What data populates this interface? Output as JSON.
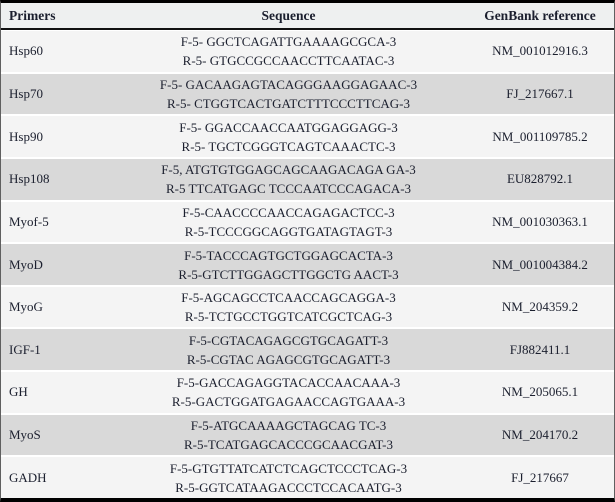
{
  "colors": {
    "border": "#000000",
    "side_edge": "#5f5f5f",
    "header_background": "#eef0f0",
    "row_light": "#f4f4f4",
    "row_dark": "#d9d9d9",
    "row_gap": "#ffffff",
    "text": "#1b1f2e"
  },
  "table": {
    "columns": [
      "Primers",
      "Sequence",
      "GenBank reference"
    ],
    "rows": [
      {
        "primer": "Hsp60",
        "forward": "F-5- GGCTCAGATTGAAAAGCGCA-3",
        "reverse": "R-5- GTGCCGCCAACCTTCAATAC-3",
        "genbank": "NM_001012916.3"
      },
      {
        "primer": "Hsp70",
        "forward": "F-5- GACAAGAGTACAGGGAAGGAGAAC-3",
        "reverse": "R-5- CTGGTCACTGATCTTTCCCTTCAG-3",
        "genbank": "FJ_217667.1"
      },
      {
        "primer": "Hsp90",
        "forward": "F-5- GGACCAACCAATGGAGGAGG-3",
        "reverse": "R-5- TGCTCGGGTCAGTCAAACTC-3",
        "genbank": "NM_001109785.2"
      },
      {
        "primer": "Hsp108",
        "forward": "F-5, ATGTGTGGAGCAGCAAGACAGA GA-3",
        "reverse": "R-5 TTCATGAGC TCCCAATCCCAGACA-3",
        "genbank": "EU828792.1"
      },
      {
        "primer": "Myof-5",
        "forward": "F-5-CAACCCCAACCAGAGACTCC-3",
        "reverse": "R-5-TCCCGGCAGGTGATAGTAGT-3",
        "genbank": "NM_001030363.1"
      },
      {
        "primer": "MyoD",
        "forward": "F-5-TACCCAGTGCTGGAGCACTA-3",
        "reverse": "R-5-GTCTTGGAGCTTGGCTG AACT-3",
        "genbank": "NM_001004384.2"
      },
      {
        "primer": "MyoG",
        "forward": "F-5-AGCAGCCTCAACCAGCAGGA-3",
        "reverse": "R-5-TCTGCCTGGTCATCGCTCAG-3",
        "genbank": "NM_204359.2"
      },
      {
        "primer": "IGF-1",
        "forward": "F-5-CGTACAGAGCGTGCAGATT-3",
        "reverse": "R-5-CGTAC AGAGCGTGCAGATT-3",
        "genbank": "FJ882411.1"
      },
      {
        "primer": "GH",
        "forward": "F-5-GACCAGAGGTACACCAACAAA-3",
        "reverse": "R-5-GACTGGATGAGAACCAGTGAAA-3",
        "genbank": "NM_205065.1"
      },
      {
        "primer": "MyoS",
        "forward": "F-5-ATGCAAAAGCTAGCAG TC-3",
        "reverse": "R-5-TCATGAGCACCCGCAACGAT-3",
        "genbank": "NM_204170.2"
      },
      {
        "primer": "GADH",
        "forward": "F-5-GTGTTATCATCTCAGCTCCCTCAG-3",
        "reverse": "R-5-GGTCATAAGACCCTCCACAATG-3",
        "genbank": "FJ_217667"
      }
    ]
  }
}
